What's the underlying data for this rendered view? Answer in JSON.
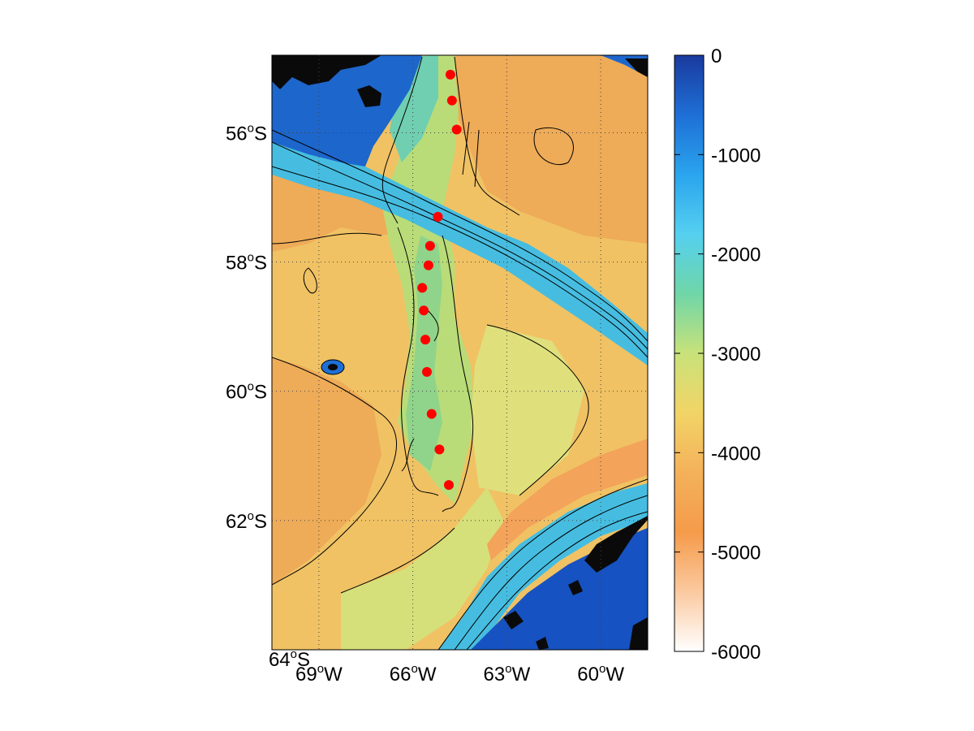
{
  "map": {
    "type": "bathymetry-contour-map",
    "lat_ticks": [
      {
        "value": -56,
        "label": "56",
        "sup": "o",
        "suffix": "S"
      },
      {
        "value": -58,
        "label": "58",
        "sup": "o",
        "suffix": "S"
      },
      {
        "value": -60,
        "label": "60",
        "sup": "o",
        "suffix": "S"
      },
      {
        "value": -62,
        "label": "62",
        "sup": "o",
        "suffix": "S"
      },
      {
        "value": -64,
        "label": "64",
        "sup": "o",
        "suffix": "S"
      }
    ],
    "lon_ticks": [
      {
        "value": -69,
        "label": "69",
        "sup": "o",
        "suffix": "W"
      },
      {
        "value": -66,
        "label": "66",
        "sup": "o",
        "suffix": "W"
      },
      {
        "value": -63,
        "label": "63",
        "sup": "o",
        "suffix": "W"
      },
      {
        "value": -60,
        "label": "60",
        "sup": "o",
        "suffix": "W"
      }
    ],
    "lon_range": [
      -70.5,
      -58.5
    ],
    "lat_range": [
      -64,
      -54.8
    ],
    "grid": "dotted",
    "colors": {
      "deep": "#e8a14f",
      "abyssal": "#f0c264",
      "mid": "#d6e07a",
      "ridge": "#8fd48a",
      "slope": "#3fb6d8",
      "shelf": "#1565c8",
      "land": "#0a0a0a",
      "stations": "#ff0000"
    }
  },
  "chart_data": {
    "type": "scatter",
    "series": [
      {
        "points": [
          {
            "lon": -64.8,
            "lat": -55.1
          },
          {
            "lon": -64.75,
            "lat": -55.5
          },
          {
            "lon": -64.6,
            "lat": -55.95
          },
          {
            "lon": -65.2,
            "lat": -57.3
          },
          {
            "lon": -65.45,
            "lat": -57.75
          },
          {
            "lon": -65.5,
            "lat": -58.05
          },
          {
            "lon": -65.7,
            "lat": -58.4
          },
          {
            "lon": -65.65,
            "lat": -58.75
          },
          {
            "lon": -65.6,
            "lat": -59.2
          },
          {
            "lon": -65.55,
            "lat": -59.7
          },
          {
            "lon": -65.4,
            "lat": -60.35
          },
          {
            "lon": -65.15,
            "lat": -60.9
          },
          {
            "lon": -64.85,
            "lat": -61.45
          }
        ]
      }
    ],
    "colorbar": {
      "ticks": [
        0,
        -1000,
        -2000,
        -3000,
        -4000,
        -5000,
        -6000
      ],
      "range": [
        -6000,
        0
      ],
      "stops": [
        "#1a3a9e",
        "#1e6fd6",
        "#2aa4ee",
        "#55d0f0",
        "#6fd6a8",
        "#c8e27a",
        "#f2d466",
        "#f4b15a",
        "#f59b4a",
        "#fbc9a0",
        "#ffffff"
      ]
    }
  }
}
